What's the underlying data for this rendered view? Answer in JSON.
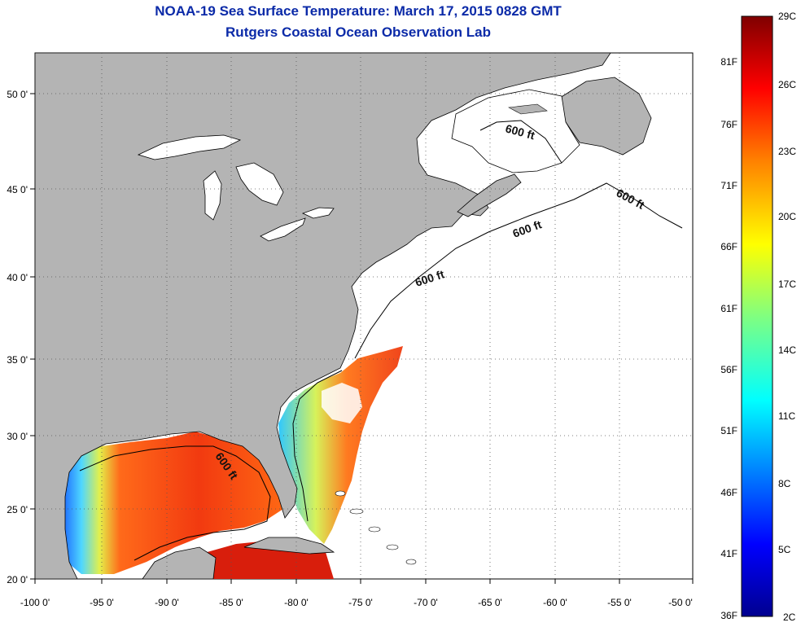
{
  "header": {
    "title": "NOAA-19 Sea Surface Temperature:  March 17, 2015 0828 GMT",
    "subtitle": "Rutgers Coastal Ocean Observation Lab"
  },
  "axes": {
    "lon_ticks": [
      "-100 0'",
      "-95 0'",
      "-90 0'",
      "-85 0'",
      "-80 0'",
      "-75 0'",
      "-70 0'",
      "-65 0'",
      "-60 0'",
      "-55 0'",
      "-50 0'"
    ],
    "lat_ticks": [
      "50 0'",
      "45 0'",
      "40 0'",
      "35 0'",
      "30 0'",
      "25 0'",
      "20 0'"
    ]
  },
  "colorbar": {
    "celsius_labels": [
      "29C",
      "26C",
      "23C",
      "20C",
      "17C",
      "14C",
      "11C",
      "8C",
      "5C",
      "2C"
    ],
    "fahrenheit_labels": [
      "81F",
      "76F",
      "71F",
      "66F",
      "61F",
      "56F",
      "51F",
      "46F",
      "41F",
      "36F"
    ],
    "colors": [
      "#7f0000",
      "#ff0000",
      "#ff8000",
      "#ffff00",
      "#80ff80",
      "#00ffff",
      "#0080ff",
      "#0000ff",
      "#00008f"
    ]
  },
  "contours": {
    "label": "600 ft"
  },
  "colors": {
    "land": "#b4b4b4",
    "water_no_data": "#ffffff",
    "title": "#0b2aa8"
  }
}
